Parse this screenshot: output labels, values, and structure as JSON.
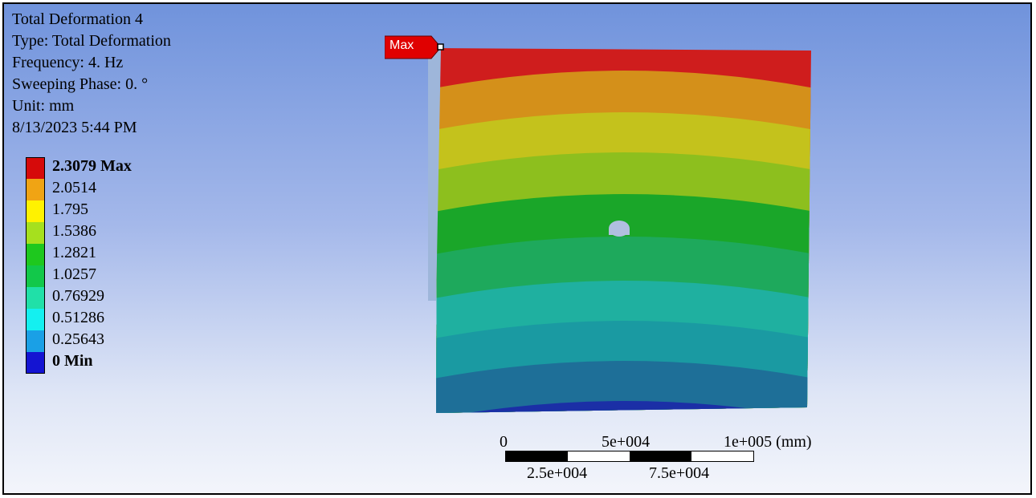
{
  "info": {
    "title": "Total Deformation 4",
    "type": "Type: Total Deformation",
    "frequency": "Frequency: 4. Hz",
    "sweeping_phase": "Sweeping Phase: 0. °",
    "unit": "Unit: mm",
    "timestamp": "8/13/2023 5:44 PM"
  },
  "legend": {
    "items": [
      {
        "label": "2.3079 Max",
        "color": "#d60a0a",
        "bold": true
      },
      {
        "label": "2.0514",
        "color": "#f0a414",
        "bold": false
      },
      {
        "label": "1.795",
        "color": "#fff200",
        "bold": false
      },
      {
        "label": "1.5386",
        "color": "#a6e01e",
        "bold": false
      },
      {
        "label": "1.2821",
        "color": "#1ec81e",
        "bold": false
      },
      {
        "label": "1.0257",
        "color": "#12c84a",
        "bold": false
      },
      {
        "label": "0.76929",
        "color": "#20e0a8",
        "bold": false
      },
      {
        "label": "0.51286",
        "color": "#14f0f0",
        "bold": false
      },
      {
        "label": "0.25643",
        "color": "#1aa0e6",
        "bold": false
      },
      {
        "label": "0 Min",
        "color": "#1414d2",
        "bold": true
      }
    ]
  },
  "model": {
    "band_colors": [
      "#1b2fa6",
      "#1e6f98",
      "#1a9aa2",
      "#1fb0a0",
      "#1ea95c",
      "#1aa629",
      "#8dbf1e",
      "#c4c21c",
      "#d4901a",
      "#cf1d1d"
    ]
  },
  "max_probe": {
    "label": "Max",
    "color": "#e00000"
  },
  "scale_bar": {
    "top_labels": [
      "0",
      "5e+004",
      "1e+005 (mm)"
    ],
    "bottom_labels": [
      "2.5e+004",
      "7.5e+004"
    ]
  }
}
